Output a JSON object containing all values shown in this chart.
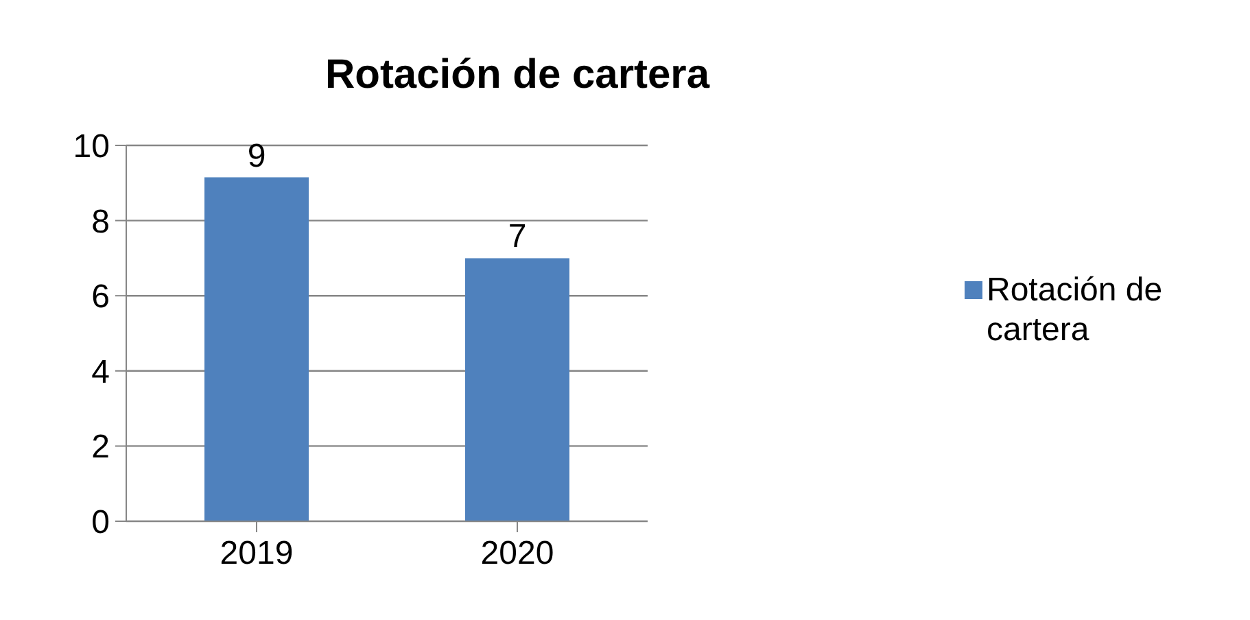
{
  "chart_data": {
    "type": "bar",
    "title": "Rotación de cartera",
    "categories": [
      "2019",
      "2020"
    ],
    "series": [
      {
        "name": "Rotación de cartera",
        "color": "#4f81bd",
        "values": [
          9.15,
          7
        ],
        "value_labels": [
          "9",
          "7"
        ]
      }
    ],
    "ylim": [
      0,
      10
    ],
    "yticks": [
      0,
      2,
      4,
      6,
      8,
      10
    ],
    "grid": "y",
    "legend": "right"
  }
}
